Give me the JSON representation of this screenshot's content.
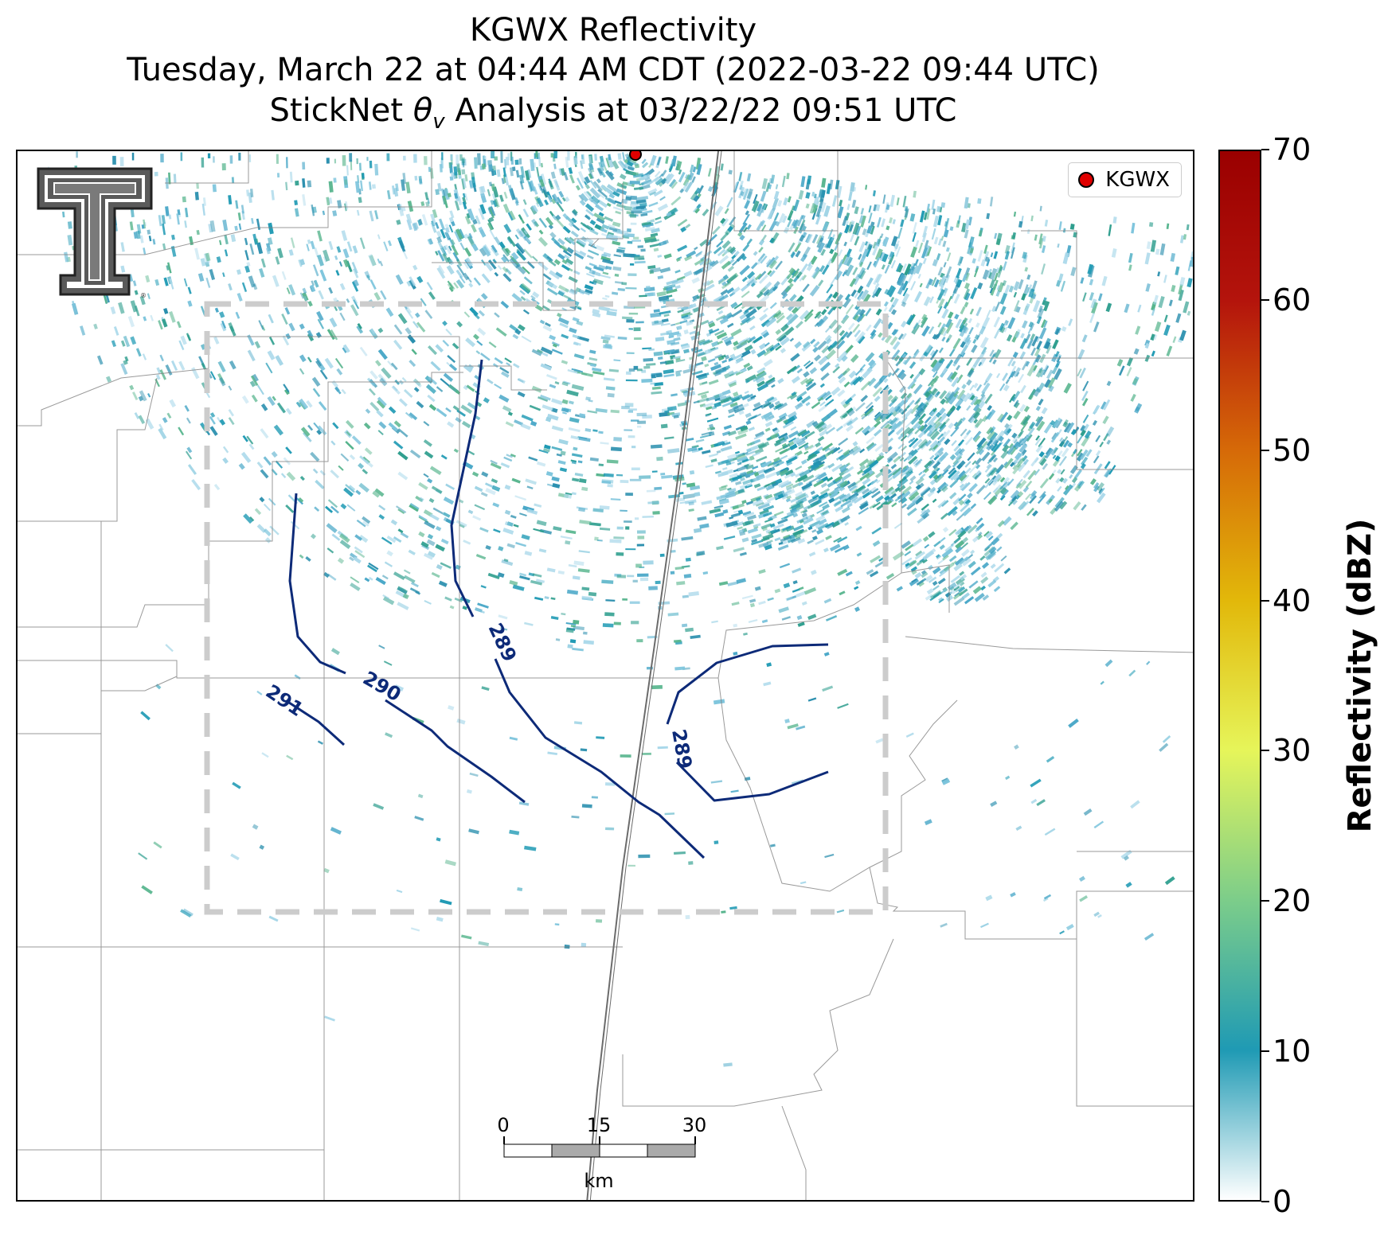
{
  "title": {
    "line1": "KGWX Reflectivity",
    "line2": "Tuesday, March 22 at 04:44 AM CDT (2022-03-22 09:44 UTC)",
    "line3_prefix": "StickNet ",
    "line3_suffix": " Analysis at 03/22/22 09:51 UTC",
    "theta_symbol": "θ",
    "theta_subscript": "v"
  },
  "legend": {
    "label": "KGWX",
    "marker_color": "#e00000"
  },
  "colorbar": {
    "label": "Reflectivity (dBZ)",
    "min": 0,
    "max": 70,
    "ticks": [
      "0",
      "10",
      "20",
      "30",
      "40",
      "50",
      "60",
      "70"
    ],
    "colors": [
      "#ffffff",
      "#1f9ab4",
      "#7ccd8a",
      "#e6f55a",
      "#e2b80a",
      "#d66a08",
      "#b4140c",
      "#9a0000"
    ]
  },
  "contours": {
    "color": "#0d2a78",
    "labels": [
      "291",
      "290",
      "289",
      "289"
    ]
  },
  "scalebar": {
    "ticks": [
      "0",
      "15",
      "30"
    ],
    "unit": "km"
  },
  "radar_site": {
    "name": "KGWX"
  },
  "icons": {
    "logo": "texas-tech-double-t-logo",
    "radar": "radar-site-marker-icon"
  }
}
